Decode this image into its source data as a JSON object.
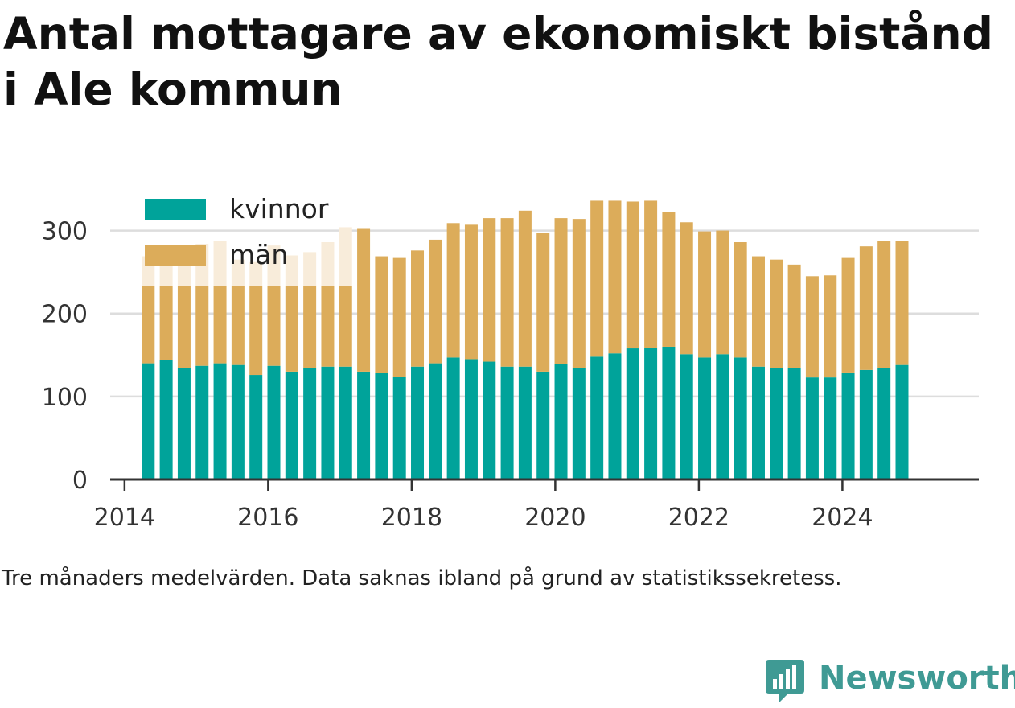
{
  "title": "Antal mottagare av ekonomiskt bistånd i Ale kommun",
  "note": "Tre månaders medelvärden. Data saknas ibland på grund av statistikssekretess.",
  "brand": "Newsworthy",
  "colors": {
    "kvinnor": "#00a39a",
    "man": "#dcac5a",
    "man_faded": "#f8ecda",
    "grid": "#dddddd",
    "axis": "#333333"
  },
  "chart_data": {
    "type": "bar",
    "stacked": true,
    "x": [
      2014.33,
      2014.58,
      2014.83,
      2015.08,
      2015.33,
      2015.58,
      2015.83,
      2016.08,
      2016.33,
      2016.58,
      2016.83,
      2017.08,
      2017.33,
      2017.58,
      2017.83,
      2018.08,
      2018.33,
      2018.58,
      2018.83,
      2019.08,
      2019.33,
      2019.58,
      2019.83,
      2020.08,
      2020.33,
      2020.58,
      2020.83,
      2021.08,
      2021.33,
      2021.58,
      2021.83,
      2022.08,
      2022.33,
      2022.58,
      2022.83,
      2023.08,
      2023.33,
      2023.58,
      2023.83,
      2024.08,
      2024.33,
      2024.58,
      2024.83
    ],
    "series": [
      {
        "name": "kvinnor",
        "values": [
          140,
          144,
          134,
          137,
          140,
          138,
          126,
          137,
          130,
          134,
          136,
          136,
          130,
          128,
          124,
          136,
          140,
          147,
          145,
          142,
          136,
          136,
          130,
          139,
          134,
          148,
          152,
          158,
          159,
          160,
          151,
          147,
          151,
          147,
          136,
          134,
          134,
          123,
          123,
          129,
          132,
          134,
          138
        ]
      },
      {
        "name": "män",
        "values": [
          129,
          123,
          139,
          147,
          147,
          127,
          136,
          145,
          140,
          140,
          150,
          168,
          172,
          141,
          143,
          140,
          149,
          162,
          162,
          173,
          179,
          188,
          167,
          176,
          180,
          188,
          184,
          177,
          177,
          162,
          159,
          152,
          149,
          139,
          133,
          131,
          125,
          122,
          123,
          138,
          149,
          153,
          149
        ]
      }
    ],
    "x_ticks": [
      "2014",
      "2016",
      "2018",
      "2020",
      "2022",
      "2024"
    ],
    "y_ticks": [
      "0",
      "100",
      "200",
      "300"
    ],
    "xlim": [
      2013.8,
      2025.9
    ],
    "ylim": [
      0,
      350
    ],
    "legend": [
      {
        "label": "kvinnor"
      },
      {
        "label": "män"
      }
    ],
    "legend_placement": "top-left",
    "grid": "horizontal"
  }
}
